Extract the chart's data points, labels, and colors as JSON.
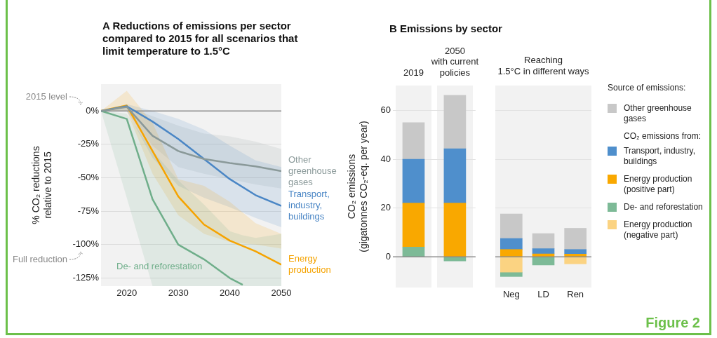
{
  "chart_data": [
    {
      "type": "line",
      "title": "A Reductions of emissions per sector compared to 2015 for all scenarios that limit temperature to 1.5°C",
      "ylabel": "% CO₂ reductions relative to 2015",
      "x": [
        2015,
        2020,
        2025,
        2030,
        2035,
        2040,
        2045,
        2050
      ],
      "xlim": [
        2015,
        2050
      ],
      "xticks": [
        2020,
        2030,
        2040,
        2050
      ],
      "ylim": [
        -131,
        20
      ],
      "yticks": [
        {
          "value": 0,
          "label": "0%"
        },
        {
          "value": -25,
          "label": "-25%"
        },
        {
          "value": -50,
          "label": "-50%"
        },
        {
          "value": -75,
          "label": "-75%"
        },
        {
          "value": -100,
          "label": "-100%"
        },
        {
          "value": -125,
          "label": "-125%"
        }
      ],
      "grid": "y",
      "marker": "none",
      "line_style": "solid",
      "ref_lines": [
        {
          "axis": "y",
          "value": 0,
          "color": "#8c8c8c"
        }
      ],
      "annotations": [
        "2015 level",
        "Full reduction"
      ],
      "series": [
        {
          "name": "Other greenhouse gases",
          "color": "#8a9999",
          "values": [
            0,
            3,
            -18.6,
            -30,
            -36,
            -39,
            -41.5,
            -45
          ],
          "lower": [
            0,
            0,
            -26,
            -42,
            -47,
            -51,
            -55,
            -58
          ],
          "upper": [
            0,
            3,
            -4,
            -11,
            -17,
            -19,
            -23,
            -28.5
          ]
        },
        {
          "name": "Transport, industry, buildings",
          "color": "#4a86c5",
          "values": [
            0,
            3.5,
            -8,
            -21,
            -36,
            -51,
            -63,
            -71
          ],
          "lower": [
            0,
            0,
            -35,
            -56,
            -65,
            -72,
            -80,
            -87
          ],
          "upper": [
            0,
            5,
            0,
            -6,
            -14,
            -26,
            -37,
            -42
          ]
        },
        {
          "name": "Energy production",
          "color": "#f5a300",
          "values": [
            0,
            4,
            -30,
            -64,
            -85,
            -97,
            -105,
            -115
          ],
          "lower": [
            0,
            0,
            -47,
            -78,
            -92,
            -98,
            -100,
            -103
          ],
          "upper": [
            0,
            15,
            -9,
            -51,
            -56,
            -68,
            -84,
            -92
          ]
        },
        {
          "name": "De- and reforestation",
          "color": "#6fae8a",
          "x": [
            2015,
            2020,
            2025,
            2030,
            2035,
            2040,
            2042.5,
            2045,
            2050
          ],
          "values": [
            0,
            -6,
            -66,
            -100,
            -111,
            -125,
            -130,
            null,
            null
          ],
          "lower": [
            0,
            -65,
            -131,
            -131,
            -131,
            -131,
            -131,
            -131,
            -131
          ],
          "upper": [
            0,
            -2,
            -30,
            -52,
            -70,
            -90,
            -93,
            -95,
            -92
          ]
        }
      ]
    },
    {
      "type": "bar",
      "stacked": true,
      "title": "B Emissions by sector",
      "ylabel": "CO₂ emissions (gigatonnes CO₂-eq. per year)",
      "categories": [
        "2019",
        "2050 with current policies"
      ],
      "ylim": [
        -12.6,
        70.2
      ],
      "yticks": [
        0,
        20,
        40,
        60
      ],
      "grid": "y",
      "ref_lines": [
        {
          "axis": "y",
          "value": 0,
          "color": "#8c8c8c"
        }
      ],
      "series": [
        {
          "color": "#7dba97",
          "values": [
            4,
            -1.7
          ]
        },
        {
          "color": "#f9a800",
          "values": [
            18,
            22
          ]
        },
        {
          "color": "#4f8fcc",
          "values": [
            18,
            22.3
          ]
        },
        {
          "color": "#c8c8c8",
          "values": [
            15,
            21.9
          ]
        }
      ]
    },
    {
      "type": "bar",
      "stacked": true,
      "subtitle": "Reaching 1.5°C in different ways",
      "categories": [
        "Neg",
        "LD",
        "Ren"
      ],
      "ylim": [
        -12.6,
        70.2
      ],
      "yticks": [
        0,
        20,
        40,
        60
      ],
      "grid": "y",
      "tick_labels": "x",
      "ref_lines": [
        {
          "axis": "y",
          "value": 0,
          "color": "#8c8c8c"
        }
      ],
      "legend": "right",
      "legend_title": "Source of emissions:",
      "annotations": [
        "CO₂ emissions from:",
        "Figure 2"
      ],
      "series": [
        {
          "name": "Energy production (negative part)",
          "color": "#fbd382",
          "values": [
            -6.3,
            null,
            -2.9
          ]
        },
        {
          "name": "De- and reforestation",
          "color": "#7dba97",
          "values": [
            -1.8,
            -3.4,
            null
          ]
        },
        {
          "name": "Energy production (positive part)",
          "color": "#f9a800",
          "values": [
            3,
            1.2,
            1.1
          ]
        },
        {
          "name": "Transport, industry, buildings",
          "color": "#4f8fcc",
          "values": [
            4.5,
            2.1,
            1.9
          ]
        },
        {
          "name": "Other greenhouse gases",
          "color": "#c8c8c8",
          "values": [
            10.1,
            6.2,
            8.7
          ]
        }
      ]
    }
  ]
}
